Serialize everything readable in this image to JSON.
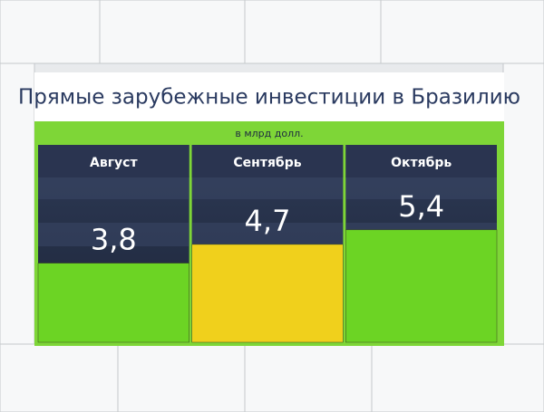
{
  "chart_data": {
    "type": "bar",
    "title": "Прямые зарубежные инвестиции в Бразилию",
    "subtitle": "в млрд долл.",
    "categories": [
      "Август",
      "Сентябрь",
      "Октябрь"
    ],
    "values": [
      3.8,
      4.7,
      5.4
    ],
    "value_labels": [
      "3,8",
      "4,7",
      "5,4"
    ],
    "colors": [
      "#6cd424",
      "#f0d01c",
      "#6cd424"
    ]
  }
}
